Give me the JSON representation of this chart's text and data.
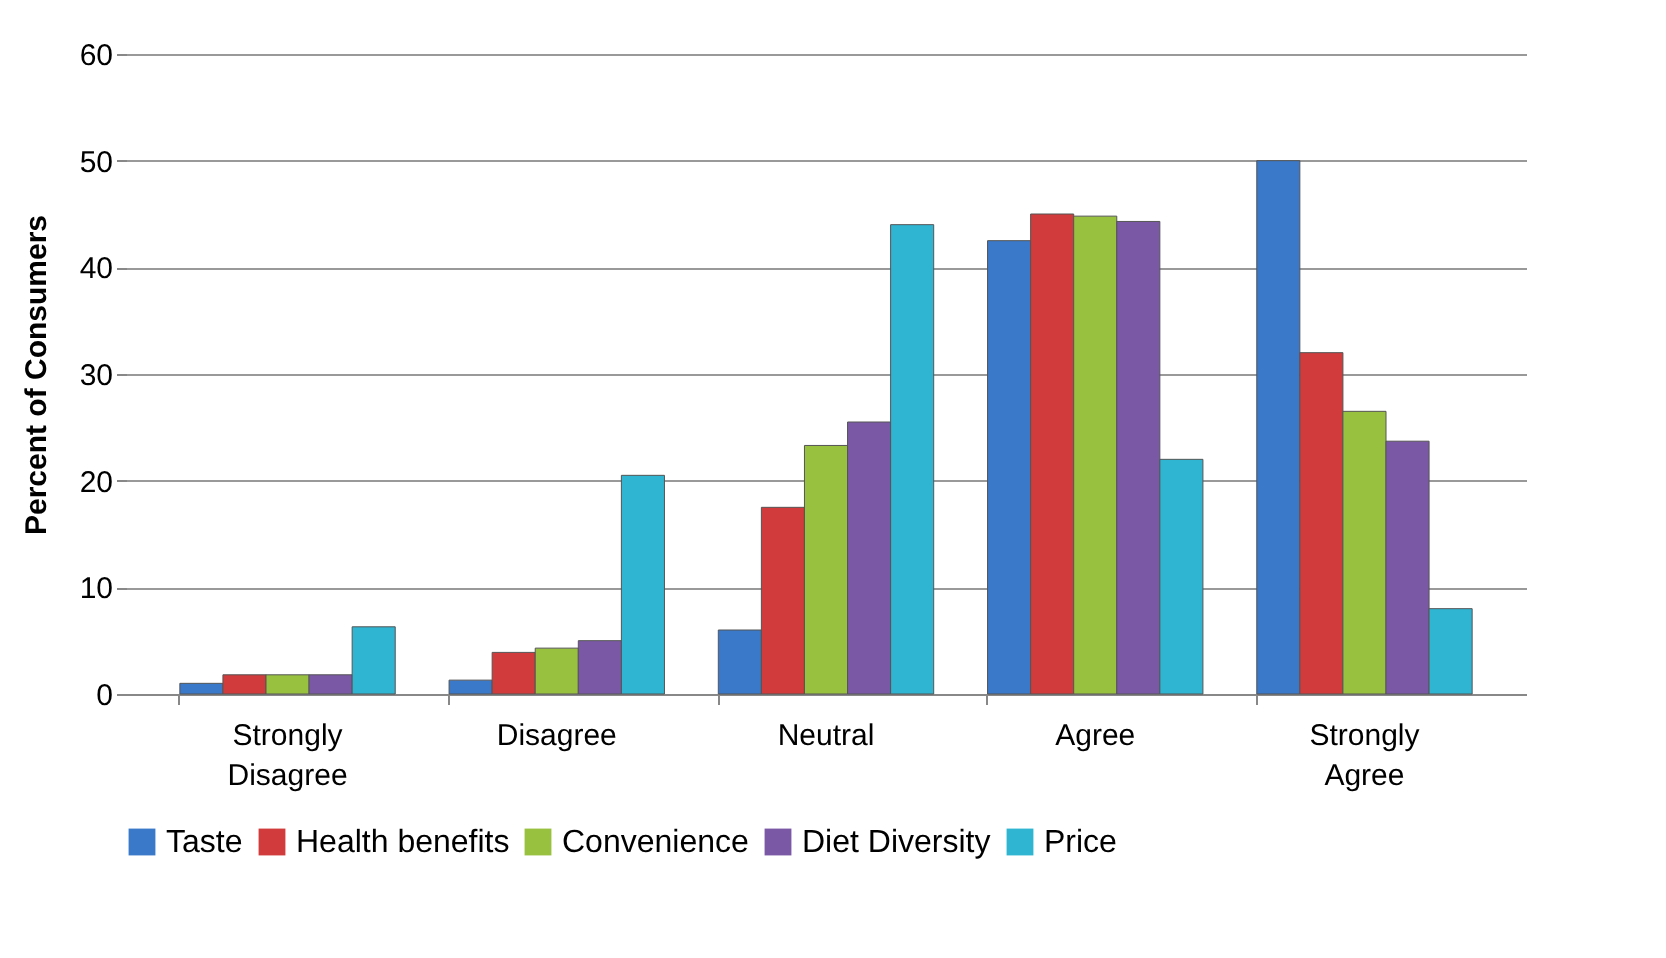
{
  "chart_data": {
    "type": "bar",
    "ylabel": "Percent of Consumers",
    "categories": [
      "Strongly Disagree",
      "Disagree",
      "Neutral",
      "Agree",
      "Strongly Agree"
    ],
    "series": [
      {
        "name": "Taste",
        "color": "#3a78c9",
        "values": [
          1,
          1.3,
          6,
          42.5,
          50
        ]
      },
      {
        "name": "Health benefits",
        "color": "#d13b3b",
        "values": [
          1.8,
          3.9,
          17.5,
          45,
          32
        ]
      },
      {
        "name": "Convenience",
        "color": "#99c140",
        "values": [
          1.8,
          4.3,
          23.3,
          44.8,
          26.5
        ]
      },
      {
        "name": "Diet Diversity",
        "color": "#7b58a6",
        "values": [
          1.8,
          5,
          25.5,
          44.3,
          23.7
        ]
      },
      {
        "name": "Price",
        "color": "#2fb5d2",
        "values": [
          6.3,
          20.5,
          44,
          22,
          8
        ]
      }
    ],
    "ylim": [
      0,
      60
    ],
    "yticks": [
      0,
      10,
      20,
      30,
      40,
      50,
      60
    ],
    "grid": "y",
    "legend": "bottom"
  }
}
